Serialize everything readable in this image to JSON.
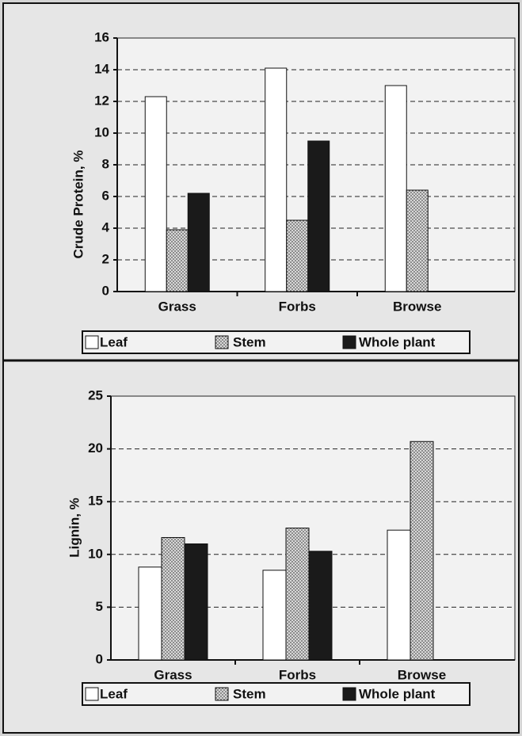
{
  "chart_data": [
    {
      "type": "bar",
      "ylabel": "Crude Protein, %",
      "categories": [
        "Grass",
        "Forbs",
        "Browse"
      ],
      "series": [
        {
          "name": "Leaf",
          "color": "#ffffff",
          "values": [
            12.3,
            14.1,
            13.0
          ]
        },
        {
          "name": "Stem",
          "color": "#b8b8b8",
          "values": [
            3.9,
            4.5,
            6.4
          ]
        },
        {
          "name": "Whole plant",
          "color": "#1a1a1a",
          "values": [
            6.2,
            9.5,
            null
          ]
        }
      ],
      "ylim": [
        0,
        16
      ],
      "yticks": [
        0,
        2,
        4,
        6,
        8,
        10,
        12,
        14,
        16
      ],
      "grid": true,
      "legend": "bottom"
    },
    {
      "type": "bar",
      "ylabel": "Lignin, %",
      "categories": [
        "Grass",
        "Forbs",
        "Browse"
      ],
      "series": [
        {
          "name": "Leaf",
          "color": "#ffffff",
          "values": [
            8.8,
            8.5,
            12.3
          ]
        },
        {
          "name": "Stem",
          "color": "#b8b8b8",
          "values": [
            11.6,
            12.5,
            20.7
          ]
        },
        {
          "name": "Whole plant",
          "color": "#1a1a1a",
          "values": [
            11.0,
            10.3,
            null
          ]
        }
      ],
      "ylim": [
        0,
        25
      ],
      "yticks": [
        0,
        5,
        10,
        15,
        20,
        25
      ],
      "grid": true,
      "legend": "bottom"
    }
  ]
}
